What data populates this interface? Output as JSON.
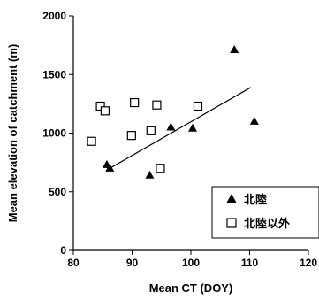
{
  "chart_data": {
    "type": "scatter",
    "xlabel": "Mean CT (DOY)",
    "ylabel": "Mean elevation of catchment (m)",
    "xlim": [
      80,
      120
    ],
    "ylim": [
      0,
      2000
    ],
    "x_ticks": [
      80,
      90,
      100,
      110,
      120
    ],
    "y_ticks": [
      0,
      500,
      1000,
      1500,
      2000
    ],
    "grid": false,
    "legend_position": "bottom-right",
    "series": [
      {
        "name": "北陸",
        "marker": "filled-triangle",
        "points": [
          {
            "x": 85.7,
            "y": 730
          },
          {
            "x": 86.2,
            "y": 700
          },
          {
            "x": 93.0,
            "y": 640
          },
          {
            "x": 96.6,
            "y": 1050
          },
          {
            "x": 100.3,
            "y": 1040
          },
          {
            "x": 107.4,
            "y": 1710
          },
          {
            "x": 110.8,
            "y": 1100
          }
        ]
      },
      {
        "name": "北陸以外",
        "marker": "open-square",
        "points": [
          {
            "x": 83.1,
            "y": 930
          },
          {
            "x": 84.6,
            "y": 1230
          },
          {
            "x": 85.4,
            "y": 1190
          },
          {
            "x": 89.9,
            "y": 980
          },
          {
            "x": 90.4,
            "y": 1260
          },
          {
            "x": 93.2,
            "y": 1020
          },
          {
            "x": 94.2,
            "y": 1240
          },
          {
            "x": 94.8,
            "y": 700
          },
          {
            "x": 101.2,
            "y": 1230
          }
        ]
      }
    ],
    "trendline": {
      "x1": 86.2,
      "y1": 700,
      "x2": 110.2,
      "y2": 1390
    }
  }
}
